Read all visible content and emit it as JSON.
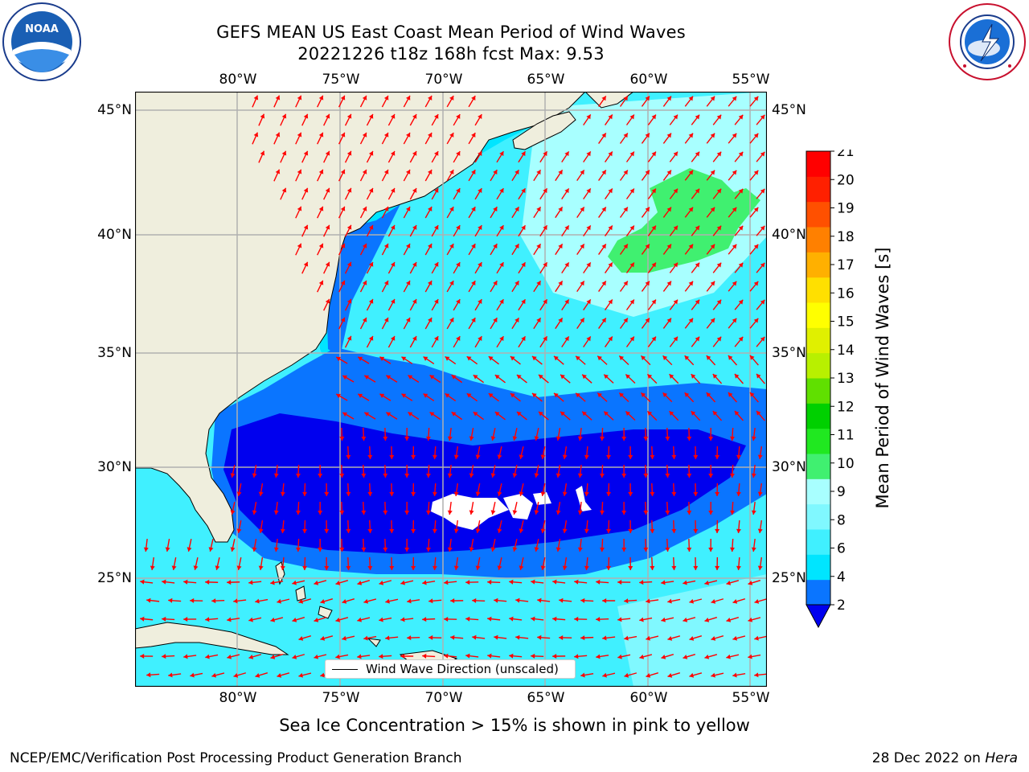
{
  "title": {
    "line1": "GEFS MEAN US East Coast Mean Period of Wind Waves",
    "line2": "20221226 t18z 168h fcst   Max: 9.53"
  },
  "axes": {
    "lon_labels": [
      "80°W",
      "75°W",
      "70°W",
      "65°W",
      "60°W",
      "55°W"
    ],
    "lat_labels": [
      "45°N",
      "40°N",
      "35°N",
      "30°N",
      "25°N"
    ]
  },
  "legend": {
    "label": "Wind Wave Direction (unscaled)"
  },
  "caption": "Sea Ice Concentration > 15% is shown in pink to yellow",
  "footer": {
    "left": "NCEP/EMC/Verification Post Processing Product Generation Branch",
    "date": "28 Dec 2022 on",
    "host": "Hera"
  },
  "logos": {
    "noaa_text": "NOAA",
    "nws_ring": "NATIONAL WEATHER SERVICE",
    "noaa_ring": "NATIONAL OCEANIC AND ATMOSPHERIC ADMINISTRATION · U.S. DEPARTMENT OF COMMERCE"
  },
  "colorbar": {
    "label": "Mean Period of Wind Waves [s]",
    "ticks": [
      "2",
      "4",
      "6",
      "8",
      "9",
      "10",
      "11",
      "12",
      "13",
      "14",
      "15",
      "16",
      "17",
      "18",
      "19",
      "20",
      "21"
    ],
    "colors": [
      "#0a75ff",
      "#00e5ff",
      "#40f0ff",
      "#80f8ff",
      "#a8ffff",
      "#40f070",
      "#20e820",
      "#00d000",
      "#60e000",
      "#b8f000",
      "#e0f000",
      "#ffff00",
      "#ffe000",
      "#ffb000",
      "#ff8000",
      "#ff5000",
      "#ff2000",
      "#ff0000"
    ],
    "under_color": "#0000ee"
  },
  "colors": {
    "land": "#efeedd",
    "grid": "#b0b0b0",
    "arrow": "#ff0000",
    "period_2_4": "#0a75ff",
    "period_under_2": "#0000ee",
    "period_4_6": "#00e5ff",
    "period_6_8": "#40f0ff",
    "period_8_9": "#a8ffff",
    "period_9_10": "#40f070"
  }
}
